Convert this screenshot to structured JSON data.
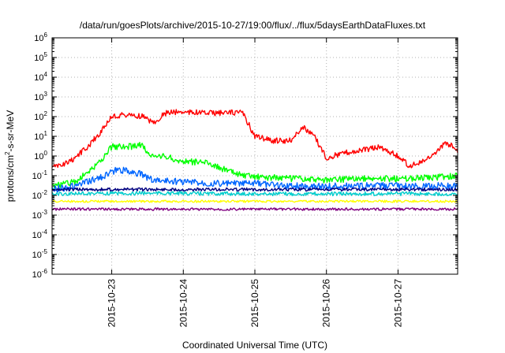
{
  "chart_data": {
    "type": "line",
    "title": "/data/run/goesPlots/archive/2015-10-27/19:00/flux/../flux/5daysEarthDataFluxes.txt",
    "xlabel": "Coordinated Universal Time (UTC)",
    "ylabel_parts": [
      "protons/cm",
      "2",
      "-s-sr-MeV"
    ],
    "y_scale": "log",
    "ylim": [
      1e-06,
      1000000.0
    ],
    "y_tick_base": "10",
    "y_tick_exponents": [
      "-6",
      "-5",
      "-4",
      "-3",
      "-2",
      "-1",
      "0",
      "1",
      "2",
      "3",
      "4",
      "5",
      "6"
    ],
    "xlim": [
      "2015-10-22T04:00",
      "2015-10-27T20:00"
    ],
    "x_ticks": [
      "2015-10-23",
      "2015-10-24",
      "2015-10-25",
      "2015-10-26",
      "2015-10-27"
    ],
    "grid": true,
    "legend": "none",
    "series": [
      {
        "color": "#ff0000",
        "x": [
          "2015-10-22T04:00",
          "2015-10-22T10:00",
          "2015-10-22T16:00",
          "2015-10-22T20:00",
          "2015-10-23T00:00",
          "2015-10-23T04:00",
          "2015-10-23T10:00",
          "2015-10-23T14:00",
          "2015-10-23T18:00",
          "2015-10-23T22:00",
          "2015-10-24T02:00",
          "2015-10-24T08:00",
          "2015-10-24T14:00",
          "2015-10-24T18:00",
          "2015-10-24T20:00",
          "2015-10-25T00:00",
          "2015-10-25T06:00",
          "2015-10-25T12:00",
          "2015-10-25T16:00",
          "2015-10-25T20:00",
          "2015-10-26T00:00",
          "2015-10-26T06:00",
          "2015-10-26T12:00",
          "2015-10-26T18:00",
          "2015-10-27T00:00",
          "2015-10-27T04:00",
          "2015-10-27T08:00",
          "2015-10-27T12:00",
          "2015-10-27T16:00",
          "2015-10-27T20:00"
        ],
        "y": [
          0.25,
          0.5,
          3,
          15,
          100,
          120,
          110,
          50,
          150,
          180,
          170,
          150,
          150,
          170,
          150,
          10,
          6,
          6,
          30,
          10,
          0.8,
          1.5,
          2,
          3,
          1,
          0.3,
          0.5,
          1,
          5,
          2
        ]
      },
      {
        "color": "#00ff00",
        "x": [
          "2015-10-22T04:00",
          "2015-10-22T12:00",
          "2015-10-22T20:00",
          "2015-10-23T00:00",
          "2015-10-23T06:00",
          "2015-10-23T10:00",
          "2015-10-23T14:00",
          "2015-10-23T18:00",
          "2015-10-24T00:00",
          "2015-10-24T08:00",
          "2015-10-24T14:00",
          "2015-10-24T20:00",
          "2015-10-25T06:00",
          "2015-10-26T00:00",
          "2015-10-26T12:00",
          "2015-10-27T00:00",
          "2015-10-27T12:00",
          "2015-10-27T20:00"
        ],
        "y": [
          0.03,
          0.05,
          0.5,
          3,
          3,
          3.5,
          0.8,
          1,
          0.5,
          0.5,
          0.2,
          0.1,
          0.08,
          0.06,
          0.07,
          0.07,
          0.08,
          0.1
        ]
      },
      {
        "color": "#0066ff",
        "x": [
          "2015-10-22T04:00",
          "2015-10-22T12:00",
          "2015-10-22T20:00",
          "2015-10-23T02:00",
          "2015-10-23T08:00",
          "2015-10-23T14:00",
          "2015-10-24T00:00",
          "2015-10-24T12:00",
          "2015-10-25T00:00",
          "2015-10-25T12:00",
          "2015-10-26T00:00",
          "2015-10-26T12:00",
          "2015-10-27T00:00",
          "2015-10-27T12:00",
          "2015-10-27T20:00"
        ],
        "y": [
          0.02,
          0.03,
          0.08,
          0.2,
          0.15,
          0.06,
          0.05,
          0.04,
          0.04,
          0.03,
          0.03,
          0.03,
          0.03,
          0.03,
          0.03
        ]
      },
      {
        "color": "#00cccc",
        "x": [
          "2015-10-22T04:00",
          "2015-10-23T12:00",
          "2015-10-25T00:00",
          "2015-10-26T12:00",
          "2015-10-27T20:00"
        ],
        "y": [
          0.012,
          0.013,
          0.012,
          0.012,
          0.012
        ]
      },
      {
        "color": "#000080",
        "x": [
          "2015-10-22T04:00",
          "2015-10-23T12:00",
          "2015-10-25T00:00",
          "2015-10-26T12:00",
          "2015-10-27T20:00"
        ],
        "y": [
          0.02,
          0.02,
          0.02,
          0.02,
          0.02
        ]
      },
      {
        "color": "#ffff00",
        "x": [
          "2015-10-22T04:00",
          "2015-10-23T12:00",
          "2015-10-25T00:00",
          "2015-10-26T12:00",
          "2015-10-27T20:00"
        ],
        "y": [
          0.005,
          0.005,
          0.005,
          0.005,
          0.005
        ]
      },
      {
        "color": "#800080",
        "x": [
          "2015-10-22T04:00",
          "2015-10-23T12:00",
          "2015-10-25T00:00",
          "2015-10-26T12:00",
          "2015-10-27T20:00"
        ],
        "y": [
          0.002,
          0.002,
          0.002,
          0.002,
          0.002
        ]
      }
    ]
  }
}
